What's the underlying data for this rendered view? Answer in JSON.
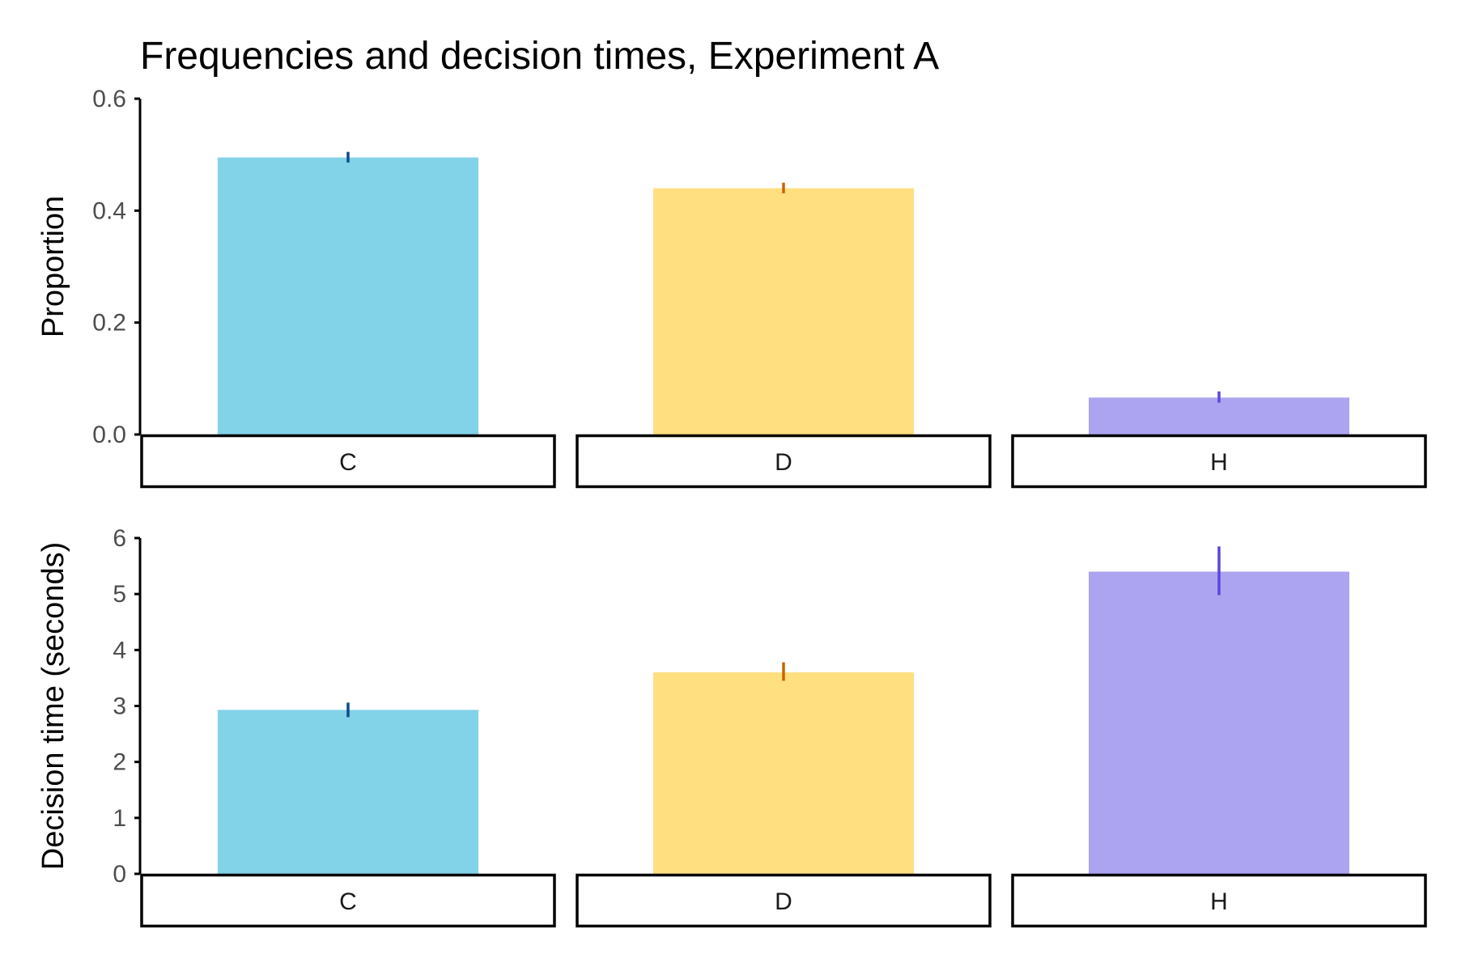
{
  "chart_data": {
    "type": "bar",
    "title": "Frequencies and decision times, Experiment A",
    "categories": [
      "C",
      "D",
      "H"
    ],
    "colors": {
      "C": {
        "fill": "#82D2E8",
        "error": "#0F4C8A"
      },
      "D": {
        "fill": "#FFDF80",
        "error": "#C86400"
      },
      "H": {
        "fill": "#ACA4F0",
        "error": "#5A46DC"
      }
    },
    "grid": false,
    "legend": "none",
    "panels": [
      {
        "ylabel": "Proportion",
        "ylim": [
          0,
          0.6
        ],
        "yticks": [
          0,
          0.2,
          0.4,
          0.6
        ],
        "ytick_labels": [
          "0.0",
          "0.2",
          "0.4",
          "0.6"
        ],
        "values": [
          0.495,
          0.44,
          0.066
        ],
        "error_low": [
          0.486,
          0.431,
          0.057
        ],
        "error_high": [
          0.505,
          0.45,
          0.077
        ]
      },
      {
        "ylabel": "Decision time (seconds)",
        "ylim": [
          0,
          6
        ],
        "yticks": [
          0,
          1,
          2,
          3,
          4,
          5,
          6
        ],
        "ytick_labels": [
          "0",
          "1",
          "2",
          "3",
          "4",
          "5",
          "6"
        ],
        "values": [
          2.93,
          3.6,
          5.4
        ],
        "error_low": [
          2.8,
          3.45,
          4.98
        ],
        "error_high": [
          3.06,
          3.78,
          5.85
        ]
      }
    ]
  }
}
